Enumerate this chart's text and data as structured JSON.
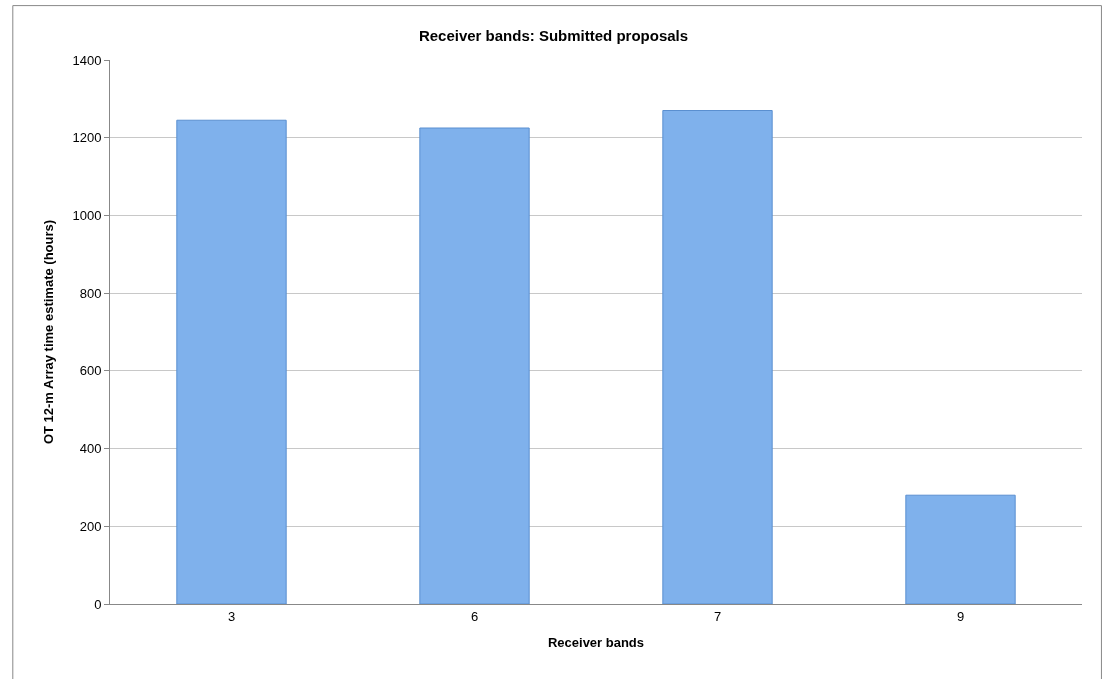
{
  "chart_data": {
    "type": "bar",
    "title": "Receiver bands: Submitted proposals",
    "xlabel": "Receiver bands",
    "ylabel": "OT 12-m Array time estimate (hours)",
    "categories": [
      "3",
      "6",
      "7",
      "9"
    ],
    "values": [
      1245,
      1225,
      1270,
      280
    ],
    "color": "#7fb1ec",
    "ylim": [
      0,
      1400
    ],
    "yticks": [
      0,
      200,
      400,
      600,
      800,
      1000,
      1200,
      1400
    ],
    "grid": "y"
  }
}
